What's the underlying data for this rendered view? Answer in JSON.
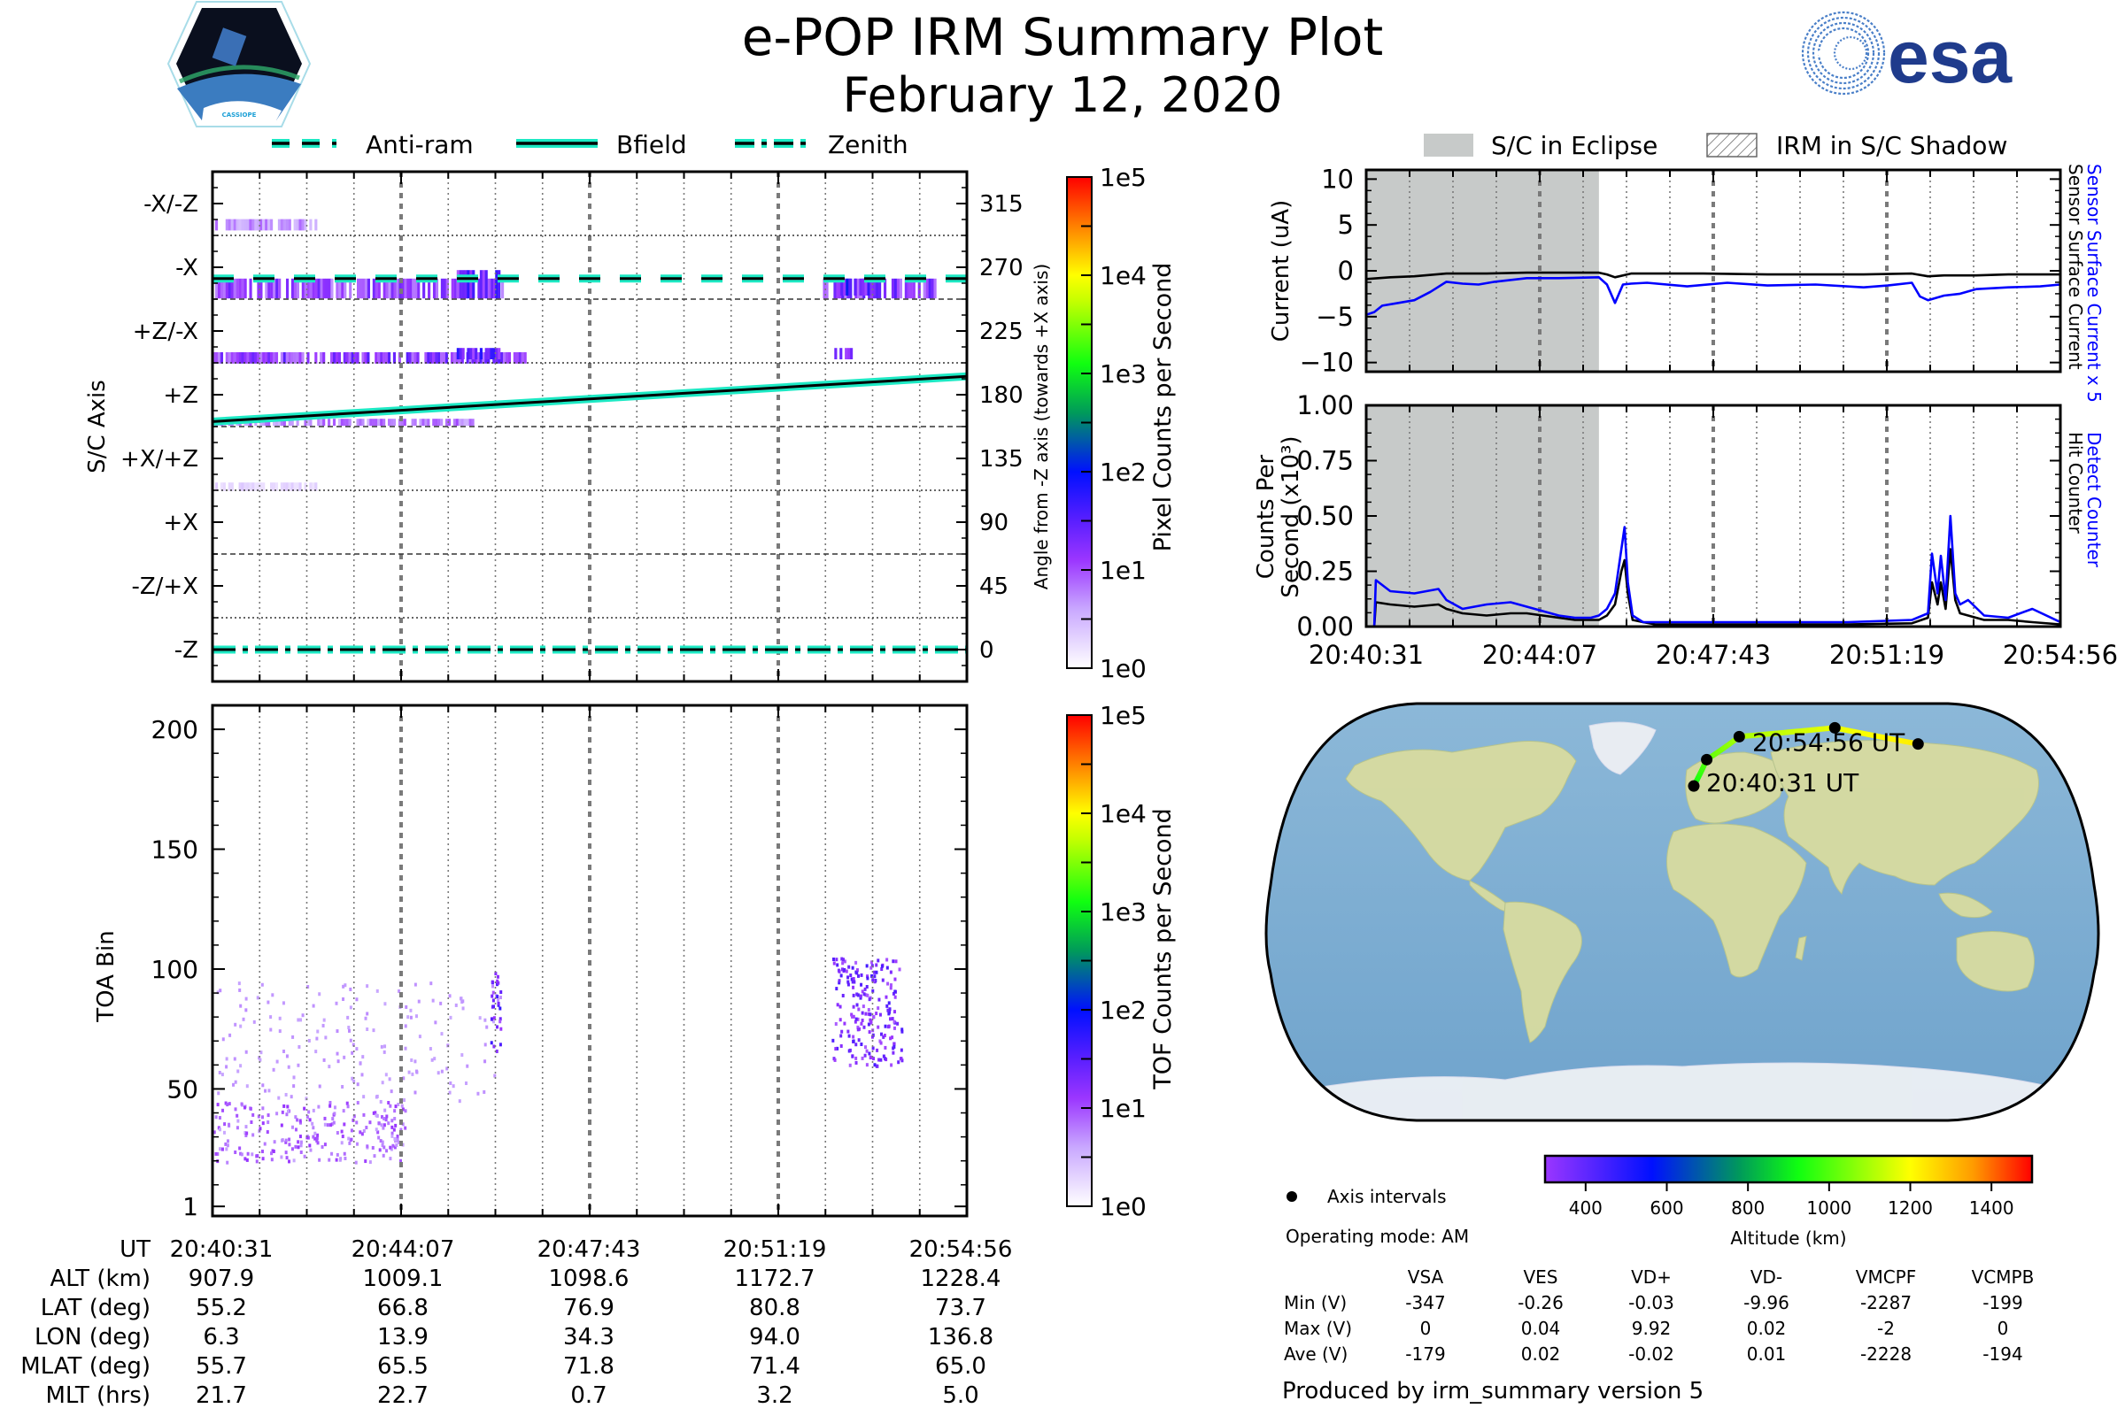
{
  "header": {
    "title": "e-POP IRM Summary Plot",
    "date": "February 12, 2020",
    "left_logo": {
      "name": "CASSIOPE mission patch",
      "caption": "CASSIOPE"
    },
    "right_logo": {
      "name": "ESA logo",
      "text": "esa",
      "color": "#1f3b8c"
    }
  },
  "colors": {
    "cyan": "#1de9c4",
    "eclipse_gray": "#c7cac9",
    "blue_line": "#0000ff",
    "black_line": "#000000",
    "grid_gray": "#777777",
    "track_green": "#7cff00",
    "track_yellow": "#f5f200"
  },
  "time_axis": {
    "ticks": [
      "20:40:31",
      "20:44:07",
      "20:47:43",
      "20:51:19",
      "20:54:56"
    ],
    "start_seconds": 0,
    "end_seconds": 865
  },
  "chart_data": [
    {
      "id": "pixel-angle",
      "type": "heatmap",
      "title": "",
      "legend": {
        "placement": "top",
        "entries": [
          {
            "label": "Anti-ram",
            "style": "dashed"
          },
          {
            "label": "Bfield",
            "style": "solid"
          },
          {
            "label": "Zenith",
            "style": "dashdot"
          }
        ]
      },
      "ylabel_left": "S/C Axis",
      "ylabel_right": "Angle from -Z axis (towards +X axis)",
      "yticks_left": [
        "-X/-Z",
        "-X",
        "+Z/-X",
        "+Z",
        "+X/+Z",
        "+X",
        "-Z/+X",
        "-Z"
      ],
      "yticks_right": [
        315,
        270,
        225,
        180,
        135,
        90,
        45,
        0
      ],
      "ylim": [
        -22.5,
        337.5
      ],
      "grid": true,
      "colorbar": {
        "label": "Pixel Counts per Second",
        "ticks": [
          "1e5",
          "1e4",
          "1e3",
          "1e2",
          "1e1",
          "1e0"
        ],
        "scale": "log",
        "range": [
          1,
          100000
        ]
      },
      "lines": {
        "anti_ram_deg": 262,
        "zenith_deg": 0,
        "bfield_deg": {
          "start": 161,
          "end": 193
        }
      },
      "blobs": [
        {
          "t0": 0,
          "t1": 120,
          "a0": 296,
          "a1": 304,
          "level": 0.35
        },
        {
          "t0": 0,
          "t1": 340,
          "a0": 248,
          "a1": 262,
          "level": 0.55
        },
        {
          "t0": 280,
          "t1": 330,
          "a0": 248,
          "a1": 268,
          "level": 0.75
        },
        {
          "t0": 700,
          "t1": 830,
          "a0": 248,
          "a1": 262,
          "level": 0.6
        },
        {
          "t0": 720,
          "t1": 760,
          "a0": 250,
          "a1": 262,
          "level": 0.8
        },
        {
          "t0": 0,
          "t1": 360,
          "a0": 202,
          "a1": 210,
          "level": 0.6
        },
        {
          "t0": 280,
          "t1": 330,
          "a0": 205,
          "a1": 213,
          "level": 0.7
        },
        {
          "t0": 710,
          "t1": 740,
          "a0": 205,
          "a1": 213,
          "level": 0.7
        },
        {
          "t0": 0,
          "t1": 300,
          "a0": 158,
          "a1": 163,
          "level": 0.4
        },
        {
          "t0": 0,
          "t1": 120,
          "a0": 112,
          "a1": 118,
          "level": 0.15
        }
      ]
    },
    {
      "id": "toa-bin",
      "type": "heatmap",
      "ylabel": "TOA Bin",
      "yticks": [
        1,
        50,
        100,
        150,
        200
      ],
      "ylim": [
        -3,
        210
      ],
      "grid": true,
      "colorbar": {
        "label": "TOF Counts per Second",
        "ticks": [
          "1e5",
          "1e4",
          "1e3",
          "1e2",
          "1e1",
          "1e0"
        ],
        "scale": "log",
        "range": [
          1,
          100000
        ]
      },
      "blobs": [
        {
          "t0": 0,
          "t1": 220,
          "b0": 20,
          "b1": 45,
          "density": 0.6
        },
        {
          "t0": 0,
          "t1": 330,
          "b0": 45,
          "b1": 95,
          "density": 0.15
        },
        {
          "t0": 318,
          "t1": 330,
          "b0": 65,
          "b1": 100,
          "density": 0.9
        },
        {
          "t0": 710,
          "t1": 790,
          "b0": 60,
          "b1": 105,
          "density": 0.8
        }
      ]
    },
    {
      "id": "current",
      "type": "line",
      "ylabel": "Current (uA)",
      "ylabel_right": [
        {
          "text": "Sensor Surface Current x 5",
          "color": "#0000ff"
        },
        {
          "text": "Sensor Surface Current",
          "color": "#000000"
        }
      ],
      "yticks": [
        10,
        5,
        0,
        -5,
        -10
      ],
      "ylim": [
        -11,
        11
      ],
      "grid": true,
      "eclipse": {
        "t0": 0,
        "t1": 290
      },
      "series": [
        {
          "name": "Sensor Surface Current",
          "color": "#000000",
          "t": [
            0,
            30,
            60,
            100,
            150,
            200,
            250,
            290,
            300,
            310,
            330,
            360,
            420,
            500,
            560,
            620,
            680,
            700,
            720,
            760,
            800,
            865
          ],
          "v": [
            -0.9,
            -0.7,
            -0.6,
            -0.3,
            -0.3,
            -0.2,
            -0.2,
            -0.2,
            -0.4,
            -0.7,
            -0.3,
            -0.3,
            -0.3,
            -0.4,
            -0.4,
            -0.4,
            -0.3,
            -0.6,
            -0.5,
            -0.5,
            -0.4,
            -0.4
          ]
        },
        {
          "name": "Sensor Surface Current x 5",
          "color": "#0000ff",
          "t": [
            0,
            10,
            20,
            40,
            60,
            80,
            100,
            120,
            140,
            160,
            200,
            240,
            290,
            300,
            310,
            320,
            330,
            350,
            400,
            450,
            500,
            560,
            620,
            650,
            680,
            690,
            700,
            720,
            740,
            760,
            800,
            840,
            865
          ],
          "v": [
            -4.8,
            -4.5,
            -3.8,
            -3.5,
            -3.2,
            -2.3,
            -1.2,
            -1.4,
            -1.5,
            -1.2,
            -0.8,
            -0.8,
            -0.7,
            -1.5,
            -3.5,
            -1.5,
            -1.4,
            -1.3,
            -1.7,
            -1.3,
            -1.6,
            -1.5,
            -1.8,
            -1.6,
            -1.3,
            -2.8,
            -3.2,
            -2.7,
            -2.5,
            -2.0,
            -1.8,
            -1.7,
            -1.5
          ]
        }
      ]
    },
    {
      "id": "counts",
      "type": "line",
      "ylabel": "Counts Per Second (x10³)",
      "ylabel_right": [
        {
          "text": "Detect Counter",
          "color": "#0000ff"
        },
        {
          "text": "Hit Counter",
          "color": "#000000"
        }
      ],
      "yticks": [
        "1.00",
        "0.75",
        "0.50",
        "0.25",
        "0.00"
      ],
      "ylim": [
        0,
        1
      ],
      "grid": true,
      "eclipse": {
        "t0": 0,
        "t1": 290
      },
      "xticks": [
        "20:40:31",
        "20:44:07",
        "20:47:43",
        "20:51:19",
        "20:54:56"
      ],
      "series": [
        {
          "name": "Hit Counter",
          "color": "#000000",
          "t": [
            0,
            10,
            12,
            30,
            60,
            90,
            100,
            120,
            150,
            180,
            200,
            240,
            260,
            280,
            290,
            300,
            310,
            318,
            322,
            326,
            332,
            345,
            360,
            420,
            500,
            600,
            680,
            700,
            705,
            712,
            716,
            722,
            728,
            734,
            740,
            750,
            770,
            800,
            830,
            865
          ],
          "v": [
            0.0,
            0.0,
            0.11,
            0.1,
            0.09,
            0.1,
            0.08,
            0.06,
            0.05,
            0.06,
            0.06,
            0.04,
            0.03,
            0.03,
            0.03,
            0.05,
            0.1,
            0.25,
            0.3,
            0.15,
            0.03,
            0.02,
            0.01,
            0.01,
            0.01,
            0.01,
            0.015,
            0.04,
            0.2,
            0.1,
            0.2,
            0.08,
            0.35,
            0.12,
            0.06,
            0.05,
            0.03,
            0.03,
            0.02,
            0.01
          ]
        },
        {
          "name": "Detect Counter",
          "color": "#0000ff",
          "t": [
            0,
            10,
            12,
            30,
            60,
            90,
            100,
            120,
            150,
            180,
            200,
            240,
            260,
            280,
            290,
            300,
            310,
            318,
            322,
            326,
            332,
            345,
            360,
            420,
            500,
            600,
            680,
            700,
            705,
            712,
            716,
            722,
            728,
            734,
            740,
            750,
            770,
            800,
            830,
            865
          ],
          "v": [
            0.0,
            0.0,
            0.21,
            0.16,
            0.15,
            0.17,
            0.12,
            0.08,
            0.1,
            0.11,
            0.09,
            0.05,
            0.04,
            0.04,
            0.05,
            0.08,
            0.15,
            0.35,
            0.45,
            0.2,
            0.05,
            0.02,
            0.02,
            0.02,
            0.02,
            0.02,
            0.03,
            0.06,
            0.33,
            0.15,
            0.32,
            0.12,
            0.5,
            0.15,
            0.1,
            0.12,
            0.05,
            0.04,
            0.08,
            0.02
          ]
        }
      ]
    },
    {
      "id": "ground-track",
      "type": "scatter",
      "title": "",
      "projection": "Robinson-like world map",
      "track": {
        "points": [
          {
            "time": "20:40:31",
            "lat": 55.2,
            "lon": 6.3,
            "alt_km": 907.9
          },
          {
            "time": "20:44:07",
            "lat": 66.8,
            "lon": 13.9,
            "alt_km": 1009.1
          },
          {
            "time": "20:47:43",
            "lat": 76.9,
            "lon": 34.3,
            "alt_km": 1098.6
          },
          {
            "time": "20:51:19",
            "lat": 80.8,
            "lon": 94.0,
            "alt_km": 1172.7
          },
          {
            "time": "20:54:56",
            "lat": 73.7,
            "lon": 136.8,
            "alt_km": 1228.4
          }
        ],
        "start_label": "20:40:31 UT",
        "end_label": "20:54:56 UT"
      },
      "legend": {
        "marker_label": "Axis intervals"
      },
      "colorbar": {
        "label": "Altitude (km)",
        "ticks": [
          400,
          600,
          800,
          1000,
          1200,
          1400
        ],
        "range": [
          300,
          1500
        ]
      }
    }
  ],
  "right_legend": {
    "eclipse_label": "S/C in Eclipse",
    "shadow_label": "IRM in S/C Shadow"
  },
  "ephemeris_table": {
    "row_labels": [
      "UT",
      "ALT (km)",
      "LAT (deg)",
      "LON (deg)",
      "MLAT (deg)",
      "MLT (hrs)"
    ],
    "columns": [
      [
        "20:40:31",
        "907.9",
        "55.2",
        "6.3",
        "55.7",
        "21.7"
      ],
      [
        "20:44:07",
        "1009.1",
        "66.8",
        "13.9",
        "65.5",
        "22.7"
      ],
      [
        "20:47:43",
        "1098.6",
        "76.9",
        "34.3",
        "71.8",
        "0.7"
      ],
      [
        "20:51:19",
        "1172.7",
        "80.8",
        "94.0",
        "71.4",
        "3.2"
      ],
      [
        "20:54:56",
        "1228.4",
        "73.7",
        "136.8",
        "65.0",
        "5.0"
      ]
    ]
  },
  "operating_mode": "Operating mode: AM",
  "voltage_table": {
    "headers": [
      "VSA",
      "VES",
      "VD+",
      "VD-",
      "VMCPF",
      "VCMPB"
    ],
    "rows": [
      {
        "label": "Min (V)",
        "values": [
          "-347",
          "-0.26",
          "-0.03",
          "-9.96",
          "-2287",
          "-199"
        ]
      },
      {
        "label": "Max (V)",
        "values": [
          "0",
          "0.04",
          "9.92",
          "0.02",
          "-2",
          "0"
        ]
      },
      {
        "label": "Ave (V)",
        "values": [
          "-179",
          "0.02",
          "-0.02",
          "0.01",
          "-2228",
          "-194"
        ]
      }
    ]
  },
  "footer": "Produced by irm_summary version 5"
}
